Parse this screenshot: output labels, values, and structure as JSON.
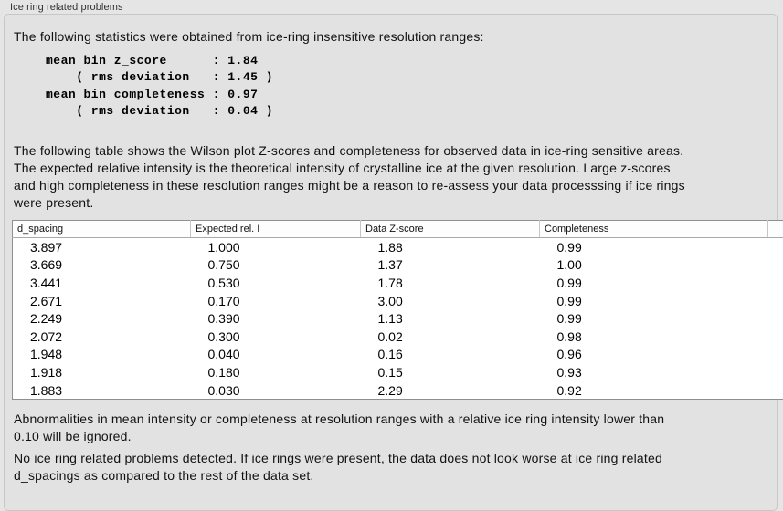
{
  "panel": {
    "title": "Ice ring related problems",
    "intro": "The following statistics were obtained from ice-ring insensitive resolution ranges:",
    "stats_block": "mean bin z_score      : 1.84\n    ( rms deviation   : 1.45 )\nmean bin completeness : 0.97\n    ( rms deviation   : 0.04 )",
    "table_description": "The following table shows the Wilson plot Z-scores and completeness for observed data in ice-ring sensitive areas.\nThe expected relative intensity is the theoretical intensity of crystalline ice at the given resolution. Large z-scores\nand high completeness in these resolution ranges might be a reason to re-assess your data processsing if ice rings\nwere present.",
    "note_ignore": "Abnormalities in mean intensity or completeness at resolution ranges with a relative ice ring intensity lower than\n0.10 will be ignored.",
    "conclusion": "No ice ring related problems detected. If ice rings were present, the data does not look worse at ice ring related\nd_spacings as compared to the rest of the data set."
  },
  "table": {
    "columns": [
      "d_spacing",
      "Expected rel. I",
      "Data Z-score",
      "Completeness",
      ""
    ],
    "rows": [
      [
        "3.897",
        "1.000",
        "1.88",
        "0.99"
      ],
      [
        "3.669",
        "0.750",
        "1.37",
        "1.00"
      ],
      [
        "3.441",
        "0.530",
        "1.78",
        "0.99"
      ],
      [
        "2.671",
        "0.170",
        "3.00",
        "0.99"
      ],
      [
        "2.249",
        "0.390",
        "1.13",
        "0.99"
      ],
      [
        "2.072",
        "0.300",
        "0.02",
        "0.98"
      ],
      [
        "1.948",
        "0.040",
        "0.16",
        "0.96"
      ],
      [
        "1.918",
        "0.180",
        "0.15",
        "0.93"
      ],
      [
        "1.883",
        "0.030",
        "2.29",
        "0.92"
      ]
    ]
  },
  "colors": {
    "page_background": "#e5e5e5",
    "box_background": "#e2e2e2",
    "box_border": "#c7c7c7",
    "table_background": "#ffffff",
    "table_border": "#8f8f8f",
    "text": "#111111"
  }
}
